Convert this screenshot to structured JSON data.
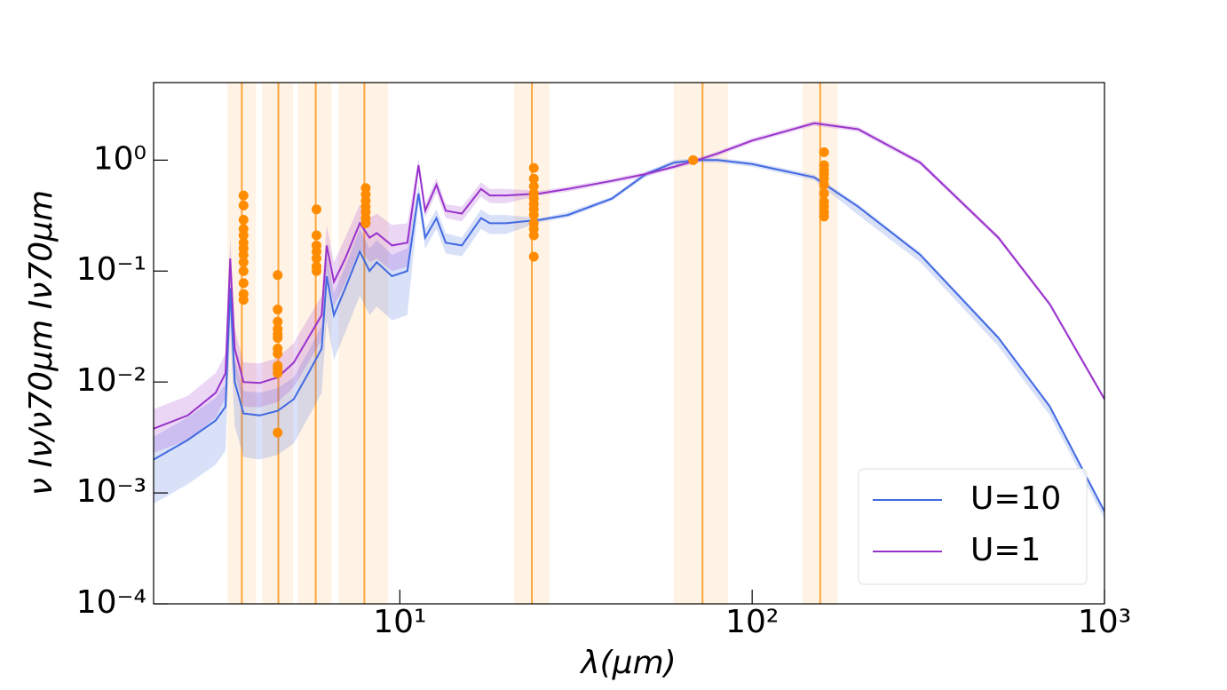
{
  "chart_data": {
    "type": "line",
    "xlabel": "λ(μm)",
    "ylabel": "ν Iν/ν70μm Iν70μm",
    "xscale": "log",
    "yscale": "log",
    "xlim": [
      2,
      1000
    ],
    "ylim": [
      0.0001,
      5
    ],
    "xticks": [
      {
        "value": 10,
        "label": "10¹"
      },
      {
        "value": 100,
        "label": "10²"
      },
      {
        "value": 1000,
        "label": "10³"
      }
    ],
    "yticks": [
      {
        "value": 0.0001,
        "label": "10⁻⁴"
      },
      {
        "value": 0.001,
        "label": "10⁻³"
      },
      {
        "value": 0.01,
        "label": "10⁻²"
      },
      {
        "value": 0.1,
        "label": "10⁻¹"
      },
      {
        "value": 1,
        "label": "10⁰"
      }
    ],
    "grid": false,
    "legend": "lower right",
    "x": [
      2,
      2.5,
      3.0,
      3.2,
      3.3,
      3.4,
      3.6,
      4,
      4.5,
      5,
      5.5,
      6,
      6.2,
      6.5,
      7,
      7.7,
      8.2,
      8.6,
      9.5,
      10.5,
      11.3,
      11.8,
      12.7,
      13.5,
      15,
      17,
      18,
      20,
      25,
      30,
      40,
      50,
      60,
      70,
      80,
      100,
      150,
      200,
      300,
      500,
      700,
      1000
    ],
    "series": [
      {
        "name": "U=10",
        "color": "#4169e1",
        "values": [
          0.002,
          0.003,
          0.0045,
          0.006,
          0.07,
          0.01,
          0.0052,
          0.005,
          0.0055,
          0.007,
          0.012,
          0.02,
          0.09,
          0.04,
          0.07,
          0.15,
          0.1,
          0.12,
          0.09,
          0.1,
          0.5,
          0.2,
          0.3,
          0.18,
          0.17,
          0.3,
          0.27,
          0.27,
          0.29,
          0.32,
          0.45,
          0.75,
          0.95,
          1.0,
          1.0,
          0.92,
          0.7,
          0.38,
          0.14,
          0.025,
          0.006,
          0.00068
        ],
        "lower": [
          0.0008,
          0.0012,
          0.0018,
          0.0024,
          0.028,
          0.004,
          0.0021,
          0.002,
          0.0022,
          0.0028,
          0.0048,
          0.008,
          0.036,
          0.016,
          0.028,
          0.06,
          0.04,
          0.048,
          0.036,
          0.04,
          0.4,
          0.16,
          0.24,
          0.144,
          0.136,
          0.24,
          0.216,
          0.216,
          0.276,
          0.304,
          0.43,
          0.71,
          0.9,
          0.95,
          0.95,
          0.87,
          0.66,
          0.32,
          0.12,
          0.021,
          0.005,
          0.00058
        ],
        "upper": [
          0.0032,
          0.0048,
          0.0072,
          0.0096,
          0.11,
          0.016,
          0.0083,
          0.008,
          0.0088,
          0.011,
          0.019,
          0.032,
          0.14,
          0.064,
          0.11,
          0.24,
          0.16,
          0.19,
          0.14,
          0.16,
          0.6,
          0.24,
          0.36,
          0.22,
          0.2,
          0.36,
          0.32,
          0.32,
          0.3,
          0.34,
          0.47,
          0.79,
          1.0,
          1.05,
          1.05,
          0.97,
          0.74,
          0.4,
          0.147,
          0.026,
          0.0063,
          0.00071
        ]
      },
      {
        "name": "U=1",
        "color": "#9932cc",
        "values": [
          0.0038,
          0.005,
          0.008,
          0.012,
          0.13,
          0.02,
          0.01,
          0.0098,
          0.011,
          0.015,
          0.025,
          0.04,
          0.17,
          0.08,
          0.13,
          0.27,
          0.2,
          0.22,
          0.17,
          0.18,
          0.9,
          0.35,
          0.6,
          0.35,
          0.33,
          0.55,
          0.48,
          0.48,
          0.5,
          0.55,
          0.65,
          0.75,
          0.87,
          1.0,
          1.15,
          1.5,
          2.15,
          1.9,
          0.95,
          0.2,
          0.05,
          0.007
        ],
        "lower": [
          0.0023,
          0.003,
          0.0048,
          0.0072,
          0.078,
          0.012,
          0.006,
          0.0059,
          0.0066,
          0.009,
          0.015,
          0.024,
          0.1,
          0.048,
          0.078,
          0.16,
          0.12,
          0.13,
          0.1,
          0.11,
          0.77,
          0.3,
          0.51,
          0.3,
          0.28,
          0.47,
          0.41,
          0.41,
          0.48,
          0.52,
          0.62,
          0.71,
          0.83,
          0.95,
          1.09,
          1.43,
          2.04,
          1.8,
          0.9,
          0.19,
          0.048,
          0.0067
        ],
        "upper": [
          0.0057,
          0.0075,
          0.012,
          0.018,
          0.2,
          0.03,
          0.015,
          0.0147,
          0.0165,
          0.0225,
          0.0375,
          0.06,
          0.26,
          0.12,
          0.2,
          0.4,
          0.3,
          0.33,
          0.26,
          0.27,
          1.04,
          0.4,
          0.69,
          0.4,
          0.38,
          0.63,
          0.55,
          0.55,
          0.53,
          0.58,
          0.68,
          0.79,
          0.91,
          1.05,
          1.21,
          1.58,
          2.26,
          2.0,
          1.0,
          0.21,
          0.053,
          0.0074
        ]
      }
    ],
    "filters": {
      "color": "#ff8c00",
      "centers": [
        3.56,
        4.52,
        5.77,
        7.93,
        23.7,
        72.3,
        156
      ],
      "ranges": [
        [
          3.24,
          3.91
        ],
        [
          4.07,
          4.98
        ],
        [
          5.13,
          6.4
        ],
        [
          6.7,
          9.27
        ],
        [
          21.1,
          26.6
        ],
        [
          59.9,
          85.4
        ],
        [
          139,
          175
        ]
      ]
    },
    "points": {
      "color": "#ff8c00",
      "x": [
        3.6,
        3.6,
        3.6,
        3.6,
        3.6,
        3.6,
        3.6,
        3.6,
        3.6,
        3.6,
        3.6,
        3.6,
        3.6,
        4.5,
        4.5,
        4.5,
        4.5,
        4.5,
        4.5,
        4.5,
        4.5,
        4.5,
        4.5,
        4.5,
        4.5,
        5.8,
        5.8,
        5.8,
        5.8,
        5.8,
        5.8,
        5.8,
        8.0,
        8.0,
        8.0,
        8.0,
        8.0,
        8.0,
        8.0,
        24,
        24,
        24,
        24,
        24,
        24,
        24,
        24,
        24,
        24,
        24,
        24,
        68,
        160,
        160,
        160,
        160,
        160,
        160,
        160,
        160,
        160,
        160,
        160
      ],
      "y": [
        0.48,
        0.39,
        0.29,
        0.24,
        0.21,
        0.18,
        0.16,
        0.14,
        0.12,
        0.1,
        0.078,
        0.062,
        0.055,
        0.092,
        0.045,
        0.035,
        0.03,
        0.027,
        0.025,
        0.02,
        0.018,
        0.014,
        0.013,
        0.012,
        0.0035,
        0.36,
        0.21,
        0.17,
        0.15,
        0.13,
        0.11,
        0.1,
        0.56,
        0.49,
        0.43,
        0.38,
        0.34,
        0.3,
        0.27,
        0.85,
        0.68,
        0.58,
        0.5,
        0.45,
        0.4,
        0.36,
        0.32,
        0.27,
        0.24,
        0.21,
        0.135,
        1.0,
        1.18,
        0.9,
        0.82,
        0.75,
        0.68,
        0.6,
        0.5,
        0.42,
        0.38,
        0.34,
        0.31
      ]
    }
  }
}
